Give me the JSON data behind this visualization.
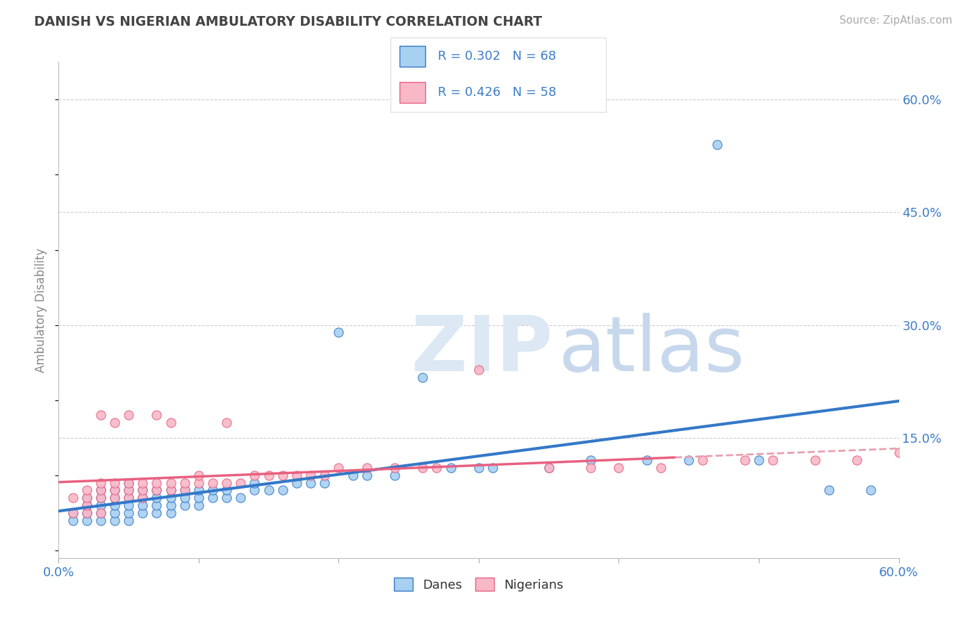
{
  "title": "DANISH VS NIGERIAN AMBULATORY DISABILITY CORRELATION CHART",
  "source": "Source: ZipAtlas.com",
  "ylabel": "Ambulatory Disability",
  "xlim": [
    0.0,
    0.6
  ],
  "ylim": [
    -0.01,
    0.65
  ],
  "xticks": [
    0.0,
    0.1,
    0.2,
    0.3,
    0.4,
    0.5,
    0.6
  ],
  "xtick_labels": [
    "0.0%",
    "",
    "",
    "",
    "",
    "",
    "60.0%"
  ],
  "ytick_labels_right": [
    "15.0%",
    "30.0%",
    "45.0%",
    "60.0%"
  ],
  "ytick_vals_right": [
    0.15,
    0.3,
    0.45,
    0.6
  ],
  "danish_color": "#A8D0F0",
  "nigerian_color": "#F8B8C8",
  "danish_line_color": "#3478C8",
  "nigerian_line_color": "#E86080",
  "dashed_line_color": "#E8A0B0",
  "legend_r_danish": "R = 0.302",
  "legend_n_danish": "N = 68",
  "legend_r_nigerian": "R = 0.426",
  "legend_n_nigerian": "N = 58",
  "title_color": "#444444",
  "axis_label_color": "#3C7CC8",
  "background_color": "#FFFFFF",
  "danes_x": [
    0.01,
    0.01,
    0.02,
    0.02,
    0.02,
    0.02,
    0.03,
    0.03,
    0.03,
    0.03,
    0.03,
    0.04,
    0.04,
    0.04,
    0.04,
    0.04,
    0.05,
    0.05,
    0.05,
    0.05,
    0.05,
    0.05,
    0.06,
    0.06,
    0.06,
    0.06,
    0.07,
    0.07,
    0.07,
    0.07,
    0.08,
    0.08,
    0.08,
    0.08,
    0.09,
    0.09,
    0.09,
    0.1,
    0.1,
    0.1,
    0.11,
    0.11,
    0.12,
    0.12,
    0.13,
    0.14,
    0.14,
    0.15,
    0.16,
    0.17,
    0.18,
    0.19,
    0.2,
    0.21,
    0.22,
    0.24,
    0.26,
    0.28,
    0.3,
    0.31,
    0.35,
    0.38,
    0.42,
    0.45,
    0.47,
    0.5,
    0.55,
    0.58
  ],
  "danes_y": [
    0.04,
    0.05,
    0.04,
    0.05,
    0.06,
    0.07,
    0.04,
    0.05,
    0.06,
    0.07,
    0.08,
    0.04,
    0.05,
    0.06,
    0.07,
    0.08,
    0.04,
    0.05,
    0.06,
    0.07,
    0.08,
    0.09,
    0.05,
    0.06,
    0.07,
    0.08,
    0.05,
    0.06,
    0.07,
    0.08,
    0.05,
    0.06,
    0.07,
    0.08,
    0.06,
    0.07,
    0.08,
    0.06,
    0.07,
    0.08,
    0.07,
    0.08,
    0.07,
    0.08,
    0.07,
    0.08,
    0.09,
    0.08,
    0.08,
    0.09,
    0.09,
    0.09,
    0.29,
    0.1,
    0.1,
    0.1,
    0.23,
    0.11,
    0.11,
    0.11,
    0.11,
    0.12,
    0.12,
    0.12,
    0.54,
    0.12,
    0.08,
    0.08
  ],
  "nigerians_x": [
    0.01,
    0.01,
    0.02,
    0.02,
    0.02,
    0.02,
    0.03,
    0.03,
    0.03,
    0.03,
    0.03,
    0.04,
    0.04,
    0.04,
    0.04,
    0.05,
    0.05,
    0.05,
    0.05,
    0.06,
    0.06,
    0.06,
    0.07,
    0.07,
    0.07,
    0.08,
    0.08,
    0.08,
    0.09,
    0.09,
    0.1,
    0.1,
    0.11,
    0.12,
    0.12,
    0.13,
    0.14,
    0.15,
    0.16,
    0.17,
    0.18,
    0.19,
    0.2,
    0.22,
    0.24,
    0.26,
    0.27,
    0.3,
    0.35,
    0.38,
    0.4,
    0.43,
    0.46,
    0.49,
    0.51,
    0.54,
    0.57,
    0.6
  ],
  "nigerians_y": [
    0.05,
    0.07,
    0.05,
    0.06,
    0.07,
    0.08,
    0.05,
    0.07,
    0.08,
    0.09,
    0.18,
    0.07,
    0.08,
    0.09,
    0.17,
    0.07,
    0.08,
    0.09,
    0.18,
    0.07,
    0.08,
    0.09,
    0.08,
    0.09,
    0.18,
    0.08,
    0.09,
    0.17,
    0.08,
    0.09,
    0.09,
    0.1,
    0.09,
    0.09,
    0.17,
    0.09,
    0.1,
    0.1,
    0.1,
    0.1,
    0.1,
    0.1,
    0.11,
    0.11,
    0.11,
    0.11,
    0.11,
    0.24,
    0.11,
    0.11,
    0.11,
    0.11,
    0.12,
    0.12,
    0.12,
    0.12,
    0.12,
    0.13
  ]
}
